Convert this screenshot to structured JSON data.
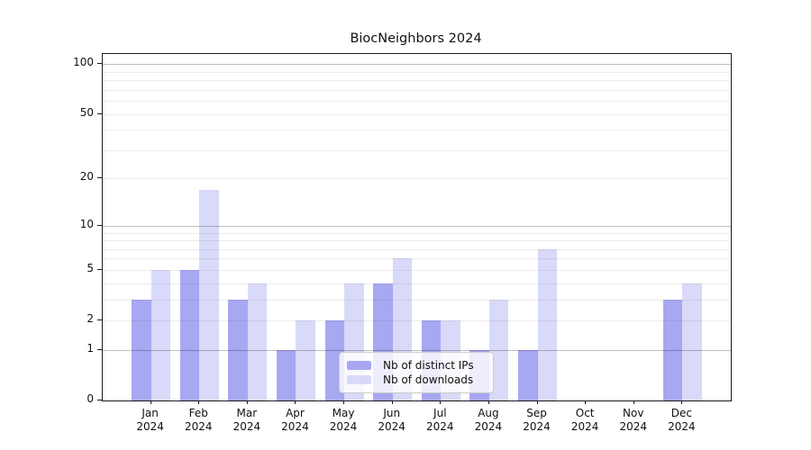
{
  "title": "BiocNeighbors 2024",
  "colors": {
    "bar_distinct_ips": "#a7a7f2",
    "bar_downloads": "#d9d9f9",
    "grid_major": "rgba(40,40,40,0.30)",
    "grid_minor": "rgba(40,40,40,0.09)",
    "spine": "#1a1a1a",
    "legend_border": "#cccccc",
    "legend_background": "rgba(255,255,255,0.8)",
    "background": "#ffffff",
    "text": "#111111"
  },
  "legend": {
    "position": "lower center",
    "items": [
      {
        "label": "Nb of distinct IPs",
        "color": "#a7a7f2"
      },
      {
        "label": "Nb of downloads",
        "color": "#d9d9f9"
      }
    ]
  },
  "chart_data": {
    "type": "bar",
    "title": "BiocNeighbors 2024",
    "x_tick_labels": [
      "Jan\n2024",
      "Feb\n2024",
      "Mar\n2024",
      "Apr\n2024",
      "May\n2024",
      "Jun\n2024",
      "Jul\n2024",
      "Aug\n2024",
      "Sep\n2024",
      "Oct\n2024",
      "Nov\n2024",
      "Dec\n2024"
    ],
    "categories": [
      "Jan 2024",
      "Feb 2024",
      "Mar 2024",
      "Apr 2024",
      "May 2024",
      "Jun 2024",
      "Jul 2024",
      "Aug 2024",
      "Sep 2024",
      "Oct 2024",
      "Nov 2024",
      "Dec 2024"
    ],
    "series": [
      {
        "name": "Nb of distinct IPs",
        "color": "#a7a7f2",
        "values": [
          3,
          5,
          3,
          1,
          2,
          4,
          2,
          1,
          1,
          0,
          0,
          3
        ]
      },
      {
        "name": "Nb of downloads",
        "color": "#d9d9f9",
        "values": [
          5,
          17,
          4,
          2,
          4,
          6,
          2,
          3,
          7,
          0,
          0,
          4
        ]
      }
    ],
    "xlabel": "",
    "ylabel": "",
    "yscale": "log1p",
    "ylim": [
      0,
      115
    ],
    "y_ticks": [
      0,
      1,
      2,
      5,
      10,
      20,
      50,
      100
    ],
    "y_tick_labels": [
      "0",
      "1",
      "2",
      "5",
      "10",
      "20",
      "50",
      "100"
    ],
    "grid": "horizontal",
    "grid_major_at": [
      1,
      10,
      100
    ],
    "legend_position": "lower center"
  }
}
